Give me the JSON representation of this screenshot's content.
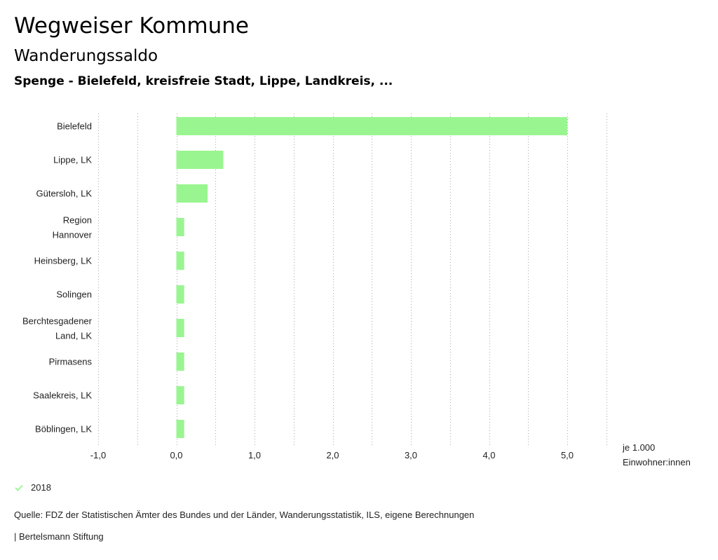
{
  "header": {
    "title": "Wegweiser Kommune",
    "subtitle": "Wanderungssaldo",
    "filter": "Spenge - Bielefeld, kreisfreie Stadt, Lippe, Landkreis, ..."
  },
  "unit": {
    "line1": "je 1.000",
    "line2": "Einwohner:innen"
  },
  "legend": {
    "label": "2018",
    "color": "#99f590"
  },
  "footer": {
    "source": "Quelle: FDZ der Statistischen Ämter des Bundes und der Länder, Wanderungsstatistik, ILS, eigene Berechnungen",
    "brand": "| Bertelsmann Stiftung"
  },
  "chart_data": {
    "type": "bar",
    "orientation": "horizontal",
    "categories": [
      [
        "Bielefeld"
      ],
      [
        "Lippe, LK"
      ],
      [
        "Gütersloh, LK"
      ],
      [
        "Region",
        "Hannover"
      ],
      [
        "Heinsberg, LK"
      ],
      [
        "Solingen"
      ],
      [
        "Berchtesgadener",
        "Land, LK"
      ],
      [
        "Pirmasens"
      ],
      [
        "Saalekreis, LK"
      ],
      [
        "Böblingen, LK"
      ]
    ],
    "series": [
      {
        "name": "2018",
        "color": "#99f590",
        "values": [
          5.0,
          0.6,
          0.4,
          0.1,
          0.1,
          0.1,
          0.1,
          0.1,
          0.1,
          0.1
        ]
      }
    ],
    "xlim": [
      -1.0,
      5.5
    ],
    "ticks": [
      -1.0,
      0.0,
      1.0,
      2.0,
      3.0,
      4.0,
      5.0
    ],
    "tick_labels": [
      "-1,0",
      "0,0",
      "1,0",
      "2,0",
      "3,0",
      "4,0",
      "5,0"
    ],
    "gridlines": [
      -1.0,
      -0.5,
      0.0,
      0.5,
      1.0,
      1.5,
      2.0,
      2.5,
      3.0,
      3.5,
      4.0,
      4.5,
      5.0,
      5.5
    ],
    "xlabel": "je 1.000 Einwohner:innen",
    "ylabel": "",
    "grid": true,
    "legend_position": "bottom-left"
  }
}
